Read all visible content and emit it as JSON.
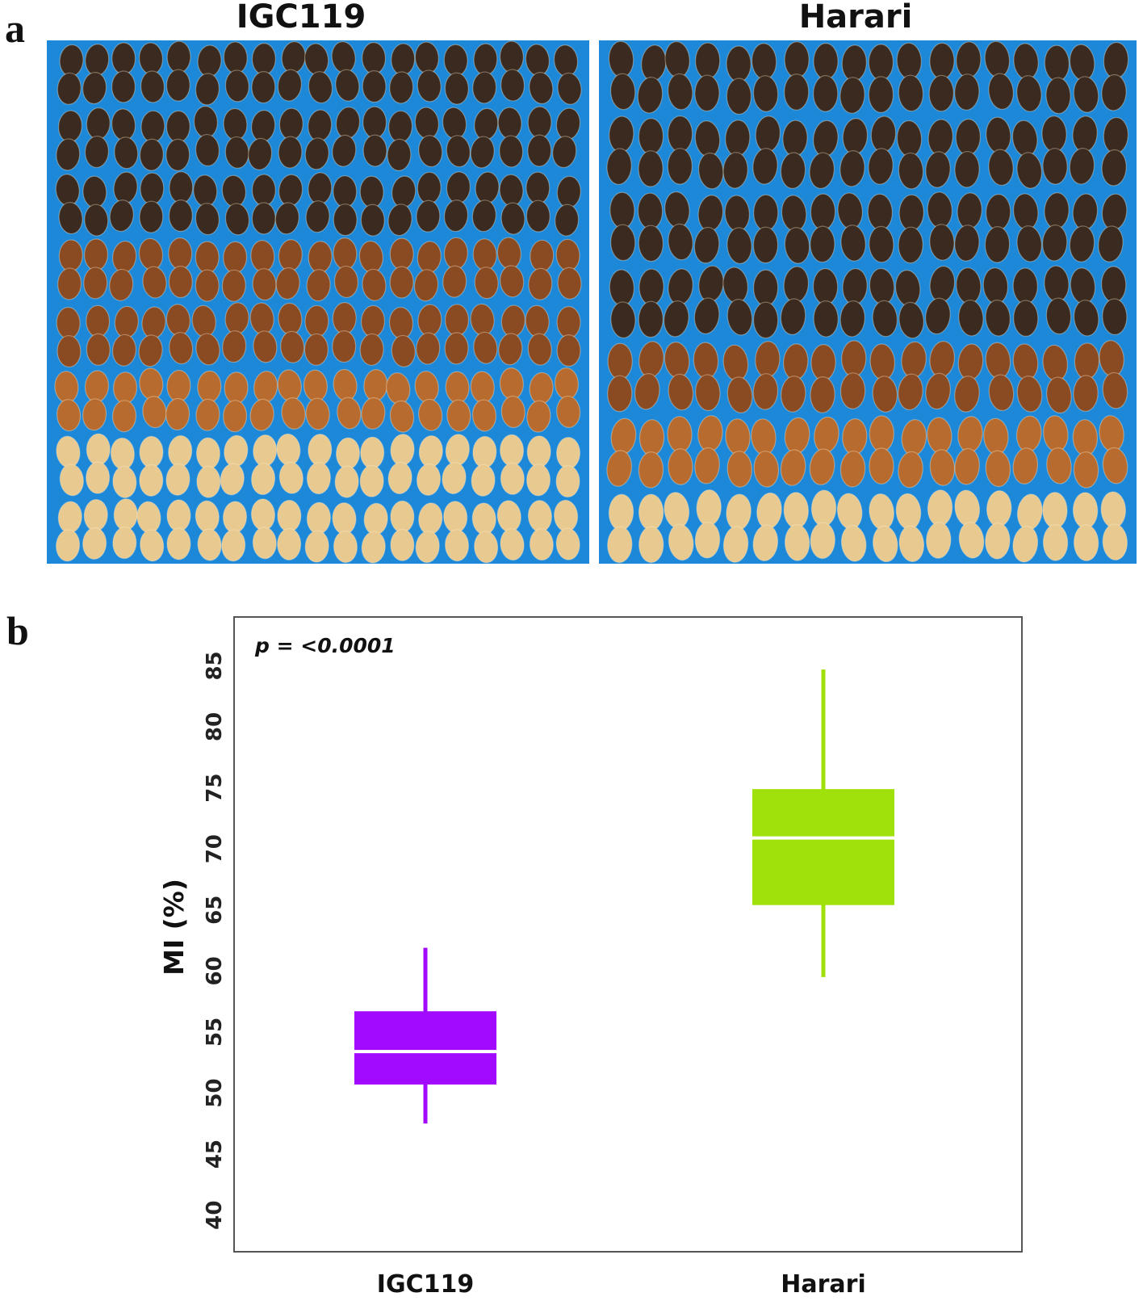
{
  "panel_a": {
    "letter": "a",
    "photos": [
      {
        "title": "IGC119"
      },
      {
        "title": "Harari"
      }
    ],
    "colors": {
      "background": "#1e88d8",
      "dark_pod": "#3b2a1f",
      "brown_pod": "#8a4a22",
      "orange_pod": "#b86b2e",
      "pale_pod": "#e8c98f"
    }
  },
  "panel_b": {
    "letter": "b",
    "p_value": "p = <0.0001"
  },
  "chart_data": {
    "type": "box",
    "title": "",
    "xlabel": "",
    "ylabel": "MI (%)",
    "ylim": [
      37,
      89
    ],
    "yticks": [
      40,
      45,
      50,
      55,
      60,
      65,
      70,
      75,
      80,
      85
    ],
    "grid": false,
    "categories": [
      "IGC119",
      "Harari"
    ],
    "series": [
      {
        "category": "IGC119",
        "whisker_low": 47.5,
        "q1": 50.7,
        "median": 53.4,
        "q3": 56.7,
        "whisker_high": 61.9,
        "color": "#a20aff"
      },
      {
        "category": "Harari",
        "whisker_low": 59.5,
        "q1": 65.4,
        "median": 70.9,
        "q3": 74.9,
        "whisker_high": 84.7,
        "color": "#a0e00b"
      }
    ]
  }
}
